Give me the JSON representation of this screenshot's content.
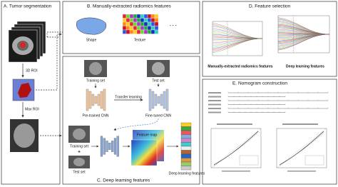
{
  "panel_a": {
    "title": "A. Tumor segmentation",
    "roi_3d": "3D ROI",
    "roi_max": "Max ROI"
  },
  "panel_b": {
    "title": "B. Manually-extracted radiomics features",
    "shape": "Shape",
    "texture": "Texture",
    "more": "· · ·"
  },
  "panel_c": {
    "title": "C. Deep learning features",
    "training_set": "Training set",
    "test_set": "Test set",
    "transfer": "Transfer learning",
    "pretrained": "Pre-trained CNN",
    "finetuned": "Fine-tuned CNN",
    "training_set_2": "Training set",
    "test_set_2": "Test set",
    "feature_map": "Feature map",
    "dl_features": "Deep learning features"
  },
  "panel_d": {
    "title": "D. Feature selection",
    "manual": "Manually-extracted radiomics features",
    "deep": "Deep learning features"
  },
  "panel_e": {
    "title": "E. Nomogram construction"
  }
}
